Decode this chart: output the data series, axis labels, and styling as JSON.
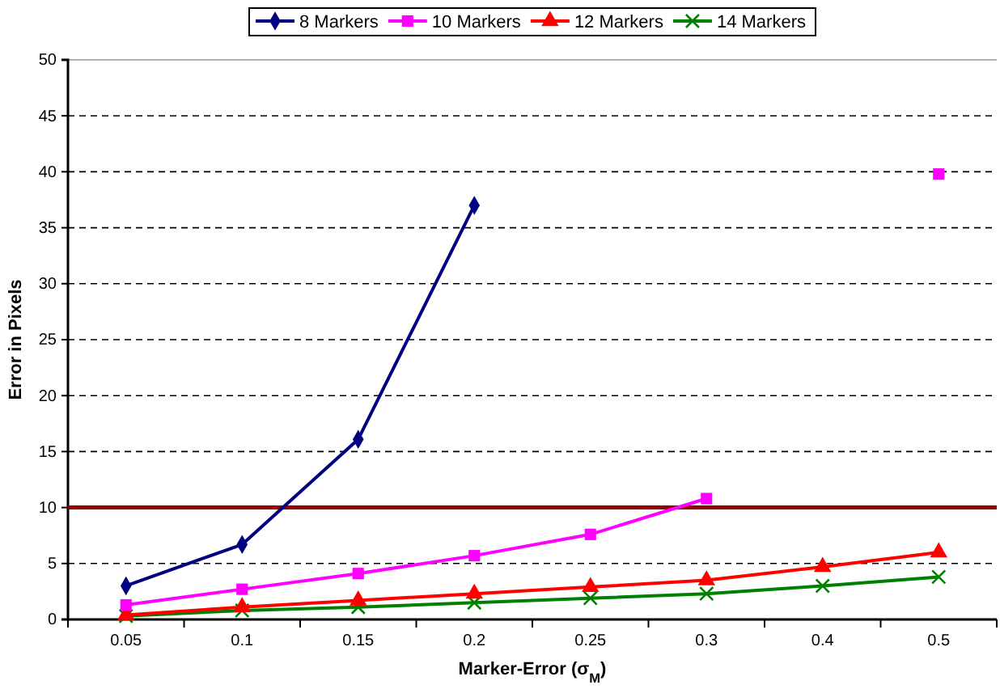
{
  "chart_data": {
    "type": "line",
    "xlabel": "Marker-Error (σ$_{M}$)",
    "ylabel": "Error in Pixels",
    "categories": [
      "0.05",
      "0.1",
      "0.15",
      "0.2",
      "0.25",
      "0.3",
      "0.4",
      "0.5"
    ],
    "series": [
      {
        "name": "8 Markers",
        "color": "#000080",
        "marker": "diamond",
        "values": [
          3.0,
          6.7,
          16.1,
          37.0,
          null,
          null,
          null,
          null
        ]
      },
      {
        "name": "10 Markers",
        "color": "#ff00ff",
        "marker": "square",
        "values": [
          1.3,
          2.7,
          4.1,
          5.7,
          7.6,
          10.8,
          null,
          39.8
        ]
      },
      {
        "name": "12 Markers",
        "color": "#ff0000",
        "marker": "triangle",
        "values": [
          0.4,
          1.1,
          1.7,
          2.3,
          2.9,
          3.5,
          4.7,
          6.0
        ]
      },
      {
        "name": "14 Markers",
        "color": "#008000",
        "marker": "cross",
        "values": [
          0.3,
          0.8,
          1.1,
          1.5,
          1.9,
          2.3,
          3.0,
          3.8
        ]
      }
    ],
    "ylim": [
      0,
      50
    ],
    "yticks": [
      0,
      5,
      10,
      15,
      20,
      25,
      30,
      35,
      40,
      45,
      50
    ],
    "grid": "y",
    "legend": "top",
    "ref_lines": [
      {
        "axis": "y",
        "value": 10,
        "color": "#990000"
      }
    ]
  }
}
